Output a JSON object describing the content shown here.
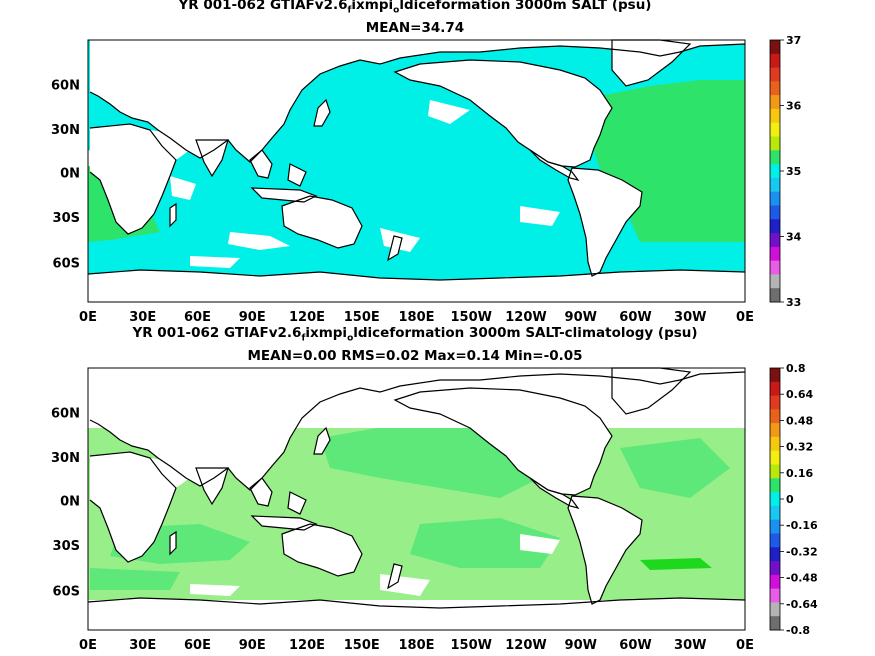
{
  "panels": [
    {
      "title": "YR 001-062 GTIAFv2.6",
      "title_sub1": "f",
      "title_mid": "ixmpi",
      "title_sub2": "o",
      "title_end": "ldiceformation 3000m SALT (psu)",
      "stats": "MEAN=34.74",
      "colorbar": {
        "ticks": [
          "37",
          "36",
          "35",
          "34",
          "33"
        ],
        "colors": [
          "#7a1010",
          "#c81818",
          "#e03a20",
          "#e8621c",
          "#f29a18",
          "#f7c810",
          "#f2ef10",
          "#b8e80c",
          "#2ee36a",
          "#00f0e8",
          "#18c8f0",
          "#1a90f0",
          "#1e5ae8",
          "#1e20c8",
          "#7010c8",
          "#d010d8",
          "#e85ce8",
          "#b4b4b4",
          "#6e6e6e"
        ]
      }
    },
    {
      "title": "YR 001-062 GTIAFv2.6",
      "title_sub1": "f",
      "title_mid": "ixmpi",
      "title_sub2": "o",
      "title_end": "ldiceformation 3000m SALT-climatology (psu)",
      "stats": "MEAN=0.00   RMS=0.02   Max=0.14   Min=-0.05",
      "colorbar": {
        "ticks": [
          "0.8",
          "0.64",
          "0.48",
          "0.32",
          "0.16",
          "0",
          "-0.16",
          "-0.32",
          "-0.48",
          "-0.64",
          "-0.8"
        ],
        "colors": [
          "#7a1010",
          "#c81818",
          "#e03a20",
          "#e8621c",
          "#f29a18",
          "#f7c810",
          "#f2ef10",
          "#b8e80c",
          "#2ee36a",
          "#00f0e8",
          "#18c8f0",
          "#1a90f0",
          "#1e5ae8",
          "#1e20c8",
          "#7010c8",
          "#d010d8",
          "#e85ce8",
          "#b4b4b4",
          "#6e6e6e"
        ]
      }
    }
  ],
  "axes": {
    "x_ticks": [
      "0E",
      "30E",
      "60E",
      "90E",
      "120E",
      "150E",
      "180E",
      "150W",
      "120W",
      "90W",
      "60W",
      "30W",
      "0E"
    ],
    "y_ticks": [
      "60N",
      "30N",
      "0N",
      "30S",
      "60S"
    ]
  },
  "colors": {
    "ocean_mean": "#00f0e8",
    "ocean_high": "#2ee36a",
    "ocean_anom_low": "#5ee87a",
    "ocean_anom_mid": "#98ee88",
    "ocean_anom_high": "#1ed81e",
    "land": "#ffffff",
    "coast": "#000000"
  }
}
